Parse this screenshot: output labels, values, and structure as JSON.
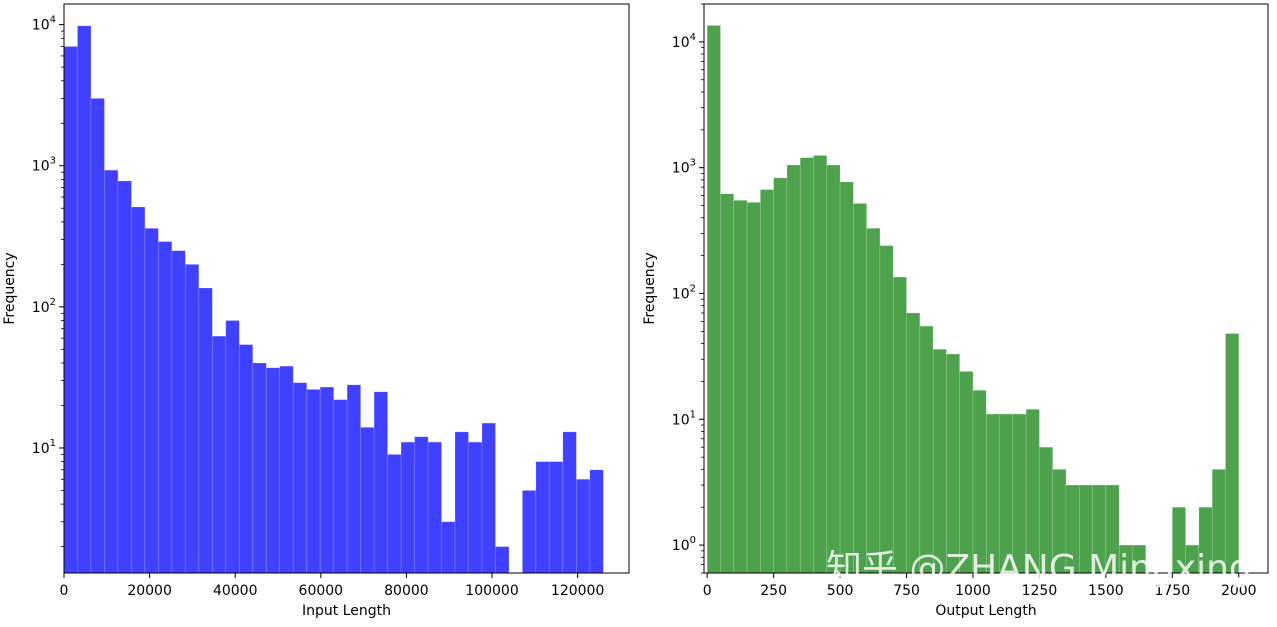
{
  "chart_data": [
    {
      "type": "bar",
      "subtype": "histogram",
      "title": "",
      "xlabel": "Input Length",
      "ylabel": "Frequency",
      "yscale": "log",
      "xlim": [
        0,
        132000
      ],
      "ylim": [
        1.3,
        14000
      ],
      "color": "#0000ff",
      "bin_width": 3150,
      "bin_start": 0,
      "xticks": [
        0,
        20000,
        40000,
        60000,
        80000,
        100000,
        120000
      ],
      "xtick_labels": [
        "0",
        "20000",
        "40000",
        "60000",
        "80000",
        "100000",
        "120000"
      ],
      "yticks": [
        10,
        100,
        1000,
        10000
      ],
      "ytick_labels": [
        "10^1",
        "10^2",
        "10^3",
        "10^4"
      ],
      "values": [
        7000,
        9800,
        3000,
        930,
        780,
        510,
        360,
        290,
        250,
        200,
        136,
        62,
        80,
        54,
        40,
        37,
        38,
        29,
        26,
        27,
        22,
        28,
        14,
        25,
        9,
        11,
        12,
        11,
        3,
        13,
        11,
        15,
        2,
        0,
        5,
        8,
        8,
        13,
        6,
        7
      ]
    },
    {
      "type": "bar",
      "subtype": "histogram",
      "title": "",
      "xlabel": "Output Length",
      "ylabel": "Frequency",
      "yscale": "log",
      "xlim": [
        -12,
        2110
      ],
      "ylim": [
        0.6,
        20000
      ],
      "color": "#228b22",
      "bin_width": 50,
      "bin_start": 0,
      "xticks": [
        0,
        250,
        500,
        750,
        1000,
        1250,
        1500,
        1750,
        2000
      ],
      "xtick_labels": [
        "0",
        "250",
        "500",
        "750",
        "1000",
        "1250",
        "1500",
        "1750",
        "2000"
      ],
      "yticks": [
        1,
        10,
        100,
        1000,
        10000
      ],
      "ytick_labels": [
        "10^0",
        "10^1",
        "10^2",
        "10^3",
        "10^4"
      ],
      "values": [
        13500,
        620,
        550,
        530,
        670,
        830,
        1050,
        1200,
        1250,
        1050,
        770,
        520,
        330,
        240,
        135,
        70,
        55,
        36,
        33,
        24,
        17,
        11,
        11,
        11,
        12,
        6,
        4,
        3,
        3,
        3,
        3,
        1,
        1,
        0,
        0,
        2,
        1,
        2,
        4,
        48
      ]
    }
  ],
  "watermark": "知乎 @ZHANG Mingxing"
}
